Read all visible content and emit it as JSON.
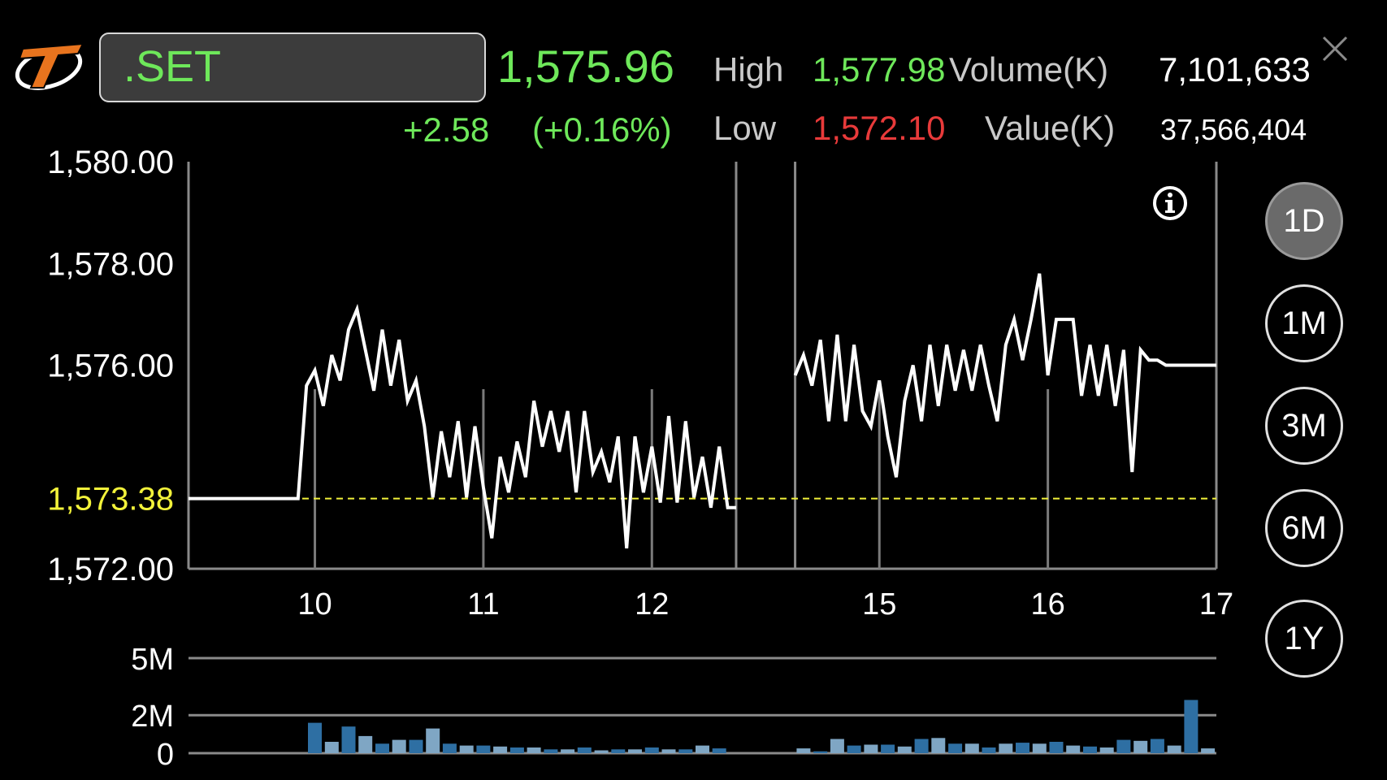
{
  "header": {
    "symbol": ".SET",
    "last_price": "1,575.96",
    "change": "+2.58",
    "change_pct": "(+0.16%)",
    "high_label": "High",
    "high_value": "1,577.98",
    "low_label": "Low",
    "low_value": "1,572.10",
    "volume_label": "Volume(K)",
    "volume_value": "7,101,633",
    "value_label": "Value(K)",
    "value_value": "37,566,404"
  },
  "periods": [
    "1D",
    "1M",
    "3M",
    "6M",
    "1Y"
  ],
  "active_period": "1D",
  "icons": [
    "app-logo-icon",
    "close-icon",
    "info-icon"
  ],
  "colors": {
    "up": "#6ee85a",
    "down": "#e83a3a",
    "reference": "#f2f23a",
    "line": "#ffffff",
    "volume_bar_a": "#2e6fa3",
    "volume_bar_b": "#7fa6c4"
  },
  "chart_data": [
    {
      "type": "line",
      "y_ticks": [
        "1,580.00",
        "1,578.00",
        "1,576.00",
        "1,572.00"
      ],
      "ylim": [
        1572.0,
        1580.0
      ],
      "reference_value": 1573.38,
      "reference_label": "1,573.38",
      "x_ticks": [
        "10",
        "11",
        "12",
        "15",
        "16",
        "17"
      ],
      "x_tick_pos": [
        0.75,
        1.75,
        2.75,
        4.1,
        5.1,
        6.1
      ],
      "xlim": [
        0,
        6.1
      ],
      "session_breaks": [
        3.25,
        3.6
      ],
      "segments": [
        [
          [
            0,
            1573.38
          ],
          [
            0.65,
            1573.38
          ],
          [
            0.7,
            1575.6
          ],
          [
            0.75,
            1575.9
          ],
          [
            0.8,
            1575.2
          ],
          [
            0.85,
            1576.2
          ],
          [
            0.9,
            1575.7
          ],
          [
            0.95,
            1576.7
          ],
          [
            1.0,
            1577.1
          ],
          [
            1.05,
            1576.3
          ],
          [
            1.1,
            1575.5
          ],
          [
            1.15,
            1576.7
          ],
          [
            1.2,
            1575.6
          ],
          [
            1.25,
            1576.5
          ],
          [
            1.3,
            1575.3
          ],
          [
            1.35,
            1575.7
          ],
          [
            1.4,
            1574.8
          ],
          [
            1.45,
            1573.4
          ],
          [
            1.5,
            1574.7
          ],
          [
            1.55,
            1573.8
          ],
          [
            1.6,
            1574.9
          ],
          [
            1.65,
            1573.4
          ],
          [
            1.7,
            1574.8
          ],
          [
            1.75,
            1573.6
          ],
          [
            1.8,
            1572.6
          ],
          [
            1.85,
            1574.2
          ],
          [
            1.9,
            1573.5
          ],
          [
            1.95,
            1574.5
          ],
          [
            2.0,
            1573.8
          ],
          [
            2.05,
            1575.3
          ],
          [
            2.1,
            1574.4
          ],
          [
            2.15,
            1575.1
          ],
          [
            2.2,
            1574.3
          ],
          [
            2.25,
            1575.1
          ],
          [
            2.3,
            1573.5
          ],
          [
            2.35,
            1575.1
          ],
          [
            2.4,
            1573.9
          ],
          [
            2.45,
            1574.3
          ],
          [
            2.5,
            1573.7
          ],
          [
            2.55,
            1574.6
          ],
          [
            2.6,
            1572.4
          ],
          [
            2.65,
            1574.6
          ],
          [
            2.7,
            1573.5
          ],
          [
            2.75,
            1574.4
          ],
          [
            2.8,
            1573.3
          ],
          [
            2.85,
            1575.0
          ],
          [
            2.9,
            1573.3
          ],
          [
            2.95,
            1574.9
          ],
          [
            3.0,
            1573.4
          ],
          [
            3.05,
            1574.2
          ],
          [
            3.1,
            1573.2
          ],
          [
            3.15,
            1574.4
          ],
          [
            3.2,
            1573.2
          ],
          [
            3.25,
            1573.2
          ]
        ],
        [
          [
            3.6,
            1575.8
          ],
          [
            3.65,
            1576.2
          ],
          [
            3.7,
            1575.6
          ],
          [
            3.75,
            1576.5
          ],
          [
            3.8,
            1574.9
          ],
          [
            3.85,
            1576.6
          ],
          [
            3.9,
            1574.9
          ],
          [
            3.95,
            1576.4
          ],
          [
            4.0,
            1575.1
          ],
          [
            4.05,
            1574.8
          ],
          [
            4.1,
            1575.7
          ],
          [
            4.15,
            1574.6
          ],
          [
            4.2,
            1573.8
          ],
          [
            4.25,
            1575.3
          ],
          [
            4.3,
            1576.0
          ],
          [
            4.35,
            1574.9
          ],
          [
            4.4,
            1576.4
          ],
          [
            4.45,
            1575.2
          ],
          [
            4.5,
            1576.4
          ],
          [
            4.55,
            1575.5
          ],
          [
            4.6,
            1576.3
          ],
          [
            4.65,
            1575.5
          ],
          [
            4.7,
            1576.4
          ],
          [
            4.75,
            1575.6
          ],
          [
            4.8,
            1574.9
          ],
          [
            4.85,
            1576.4
          ],
          [
            4.9,
            1576.9
          ],
          [
            4.95,
            1576.1
          ],
          [
            5.0,
            1576.9
          ],
          [
            5.05,
            1577.8
          ],
          [
            5.1,
            1575.8
          ],
          [
            5.15,
            1576.9
          ],
          [
            5.2,
            1576.9
          ],
          [
            5.25,
            1576.9
          ],
          [
            5.3,
            1575.4
          ],
          [
            5.35,
            1576.4
          ],
          [
            5.4,
            1575.4
          ],
          [
            5.45,
            1576.4
          ],
          [
            5.5,
            1575.2
          ],
          [
            5.55,
            1576.3
          ],
          [
            5.6,
            1573.9
          ],
          [
            5.65,
            1576.3
          ],
          [
            5.7,
            1576.1
          ],
          [
            5.75,
            1576.1
          ],
          [
            5.8,
            1576.0
          ],
          [
            5.9,
            1576.0
          ],
          [
            6.0,
            1576.0
          ],
          [
            6.1,
            1576.0
          ]
        ]
      ]
    },
    {
      "type": "bar",
      "y_ticks": [
        "5M",
        "2M",
        "0"
      ],
      "ylim": [
        0,
        5
      ],
      "series": [
        {
          "x": [
            0.75,
            0.85,
            0.95,
            1.05,
            1.15,
            1.25,
            1.35,
            1.45,
            1.55,
            1.65,
            1.75,
            1.85,
            1.95,
            2.05,
            2.15,
            2.25,
            2.35,
            2.45,
            2.55,
            2.65,
            2.75,
            2.85,
            2.95,
            3.05,
            3.15,
            3.65,
            3.75,
            3.85,
            3.95,
            4.05,
            4.15,
            4.25,
            4.35,
            4.45,
            4.55,
            4.65,
            4.75,
            4.85,
            4.95,
            5.05,
            5.15,
            5.25,
            5.35,
            5.45,
            5.55,
            5.65,
            5.75,
            5.85,
            5.95,
            6.05
          ],
          "values": [
            1.6,
            0.6,
            1.4,
            0.9,
            0.5,
            0.7,
            0.7,
            1.3,
            0.5,
            0.4,
            0.4,
            0.35,
            0.3,
            0.3,
            0.2,
            0.2,
            0.3,
            0.15,
            0.2,
            0.2,
            0.3,
            0.2,
            0.2,
            0.4,
            0.25,
            0.25,
            0.1,
            0.75,
            0.4,
            0.45,
            0.45,
            0.35,
            0.75,
            0.8,
            0.5,
            0.5,
            0.3,
            0.5,
            0.55,
            0.5,
            0.6,
            0.4,
            0.35,
            0.3,
            0.7,
            0.65,
            0.75,
            0.4,
            2.8,
            0.25
          ]
        }
      ]
    }
  ]
}
